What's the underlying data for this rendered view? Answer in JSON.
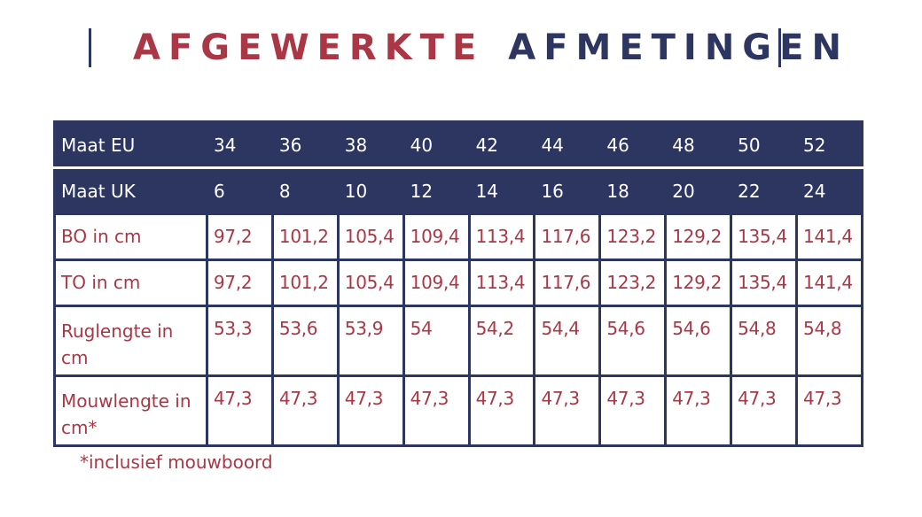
{
  "title": {
    "word1": "AFGEWERKTE",
    "word2": "AFMETINGEN"
  },
  "colors": {
    "navy": "#2d3561",
    "red": "#a93745"
  },
  "table": {
    "rows": [
      {
        "label": "Maat EU",
        "values": [
          "34",
          "36",
          "38",
          "40",
          "42",
          "44",
          "46",
          "48",
          "50",
          "52"
        ]
      },
      {
        "label": "Maat UK",
        "values": [
          "6",
          "8",
          "10",
          "12",
          "14",
          "16",
          "18",
          "20",
          "22",
          "24"
        ]
      },
      {
        "label": "BO in cm",
        "values": [
          "97,2",
          "101,2",
          "105,4",
          "109,4",
          "113,4",
          "117,6",
          "123,2",
          "129,2",
          "135,4",
          "141,4"
        ]
      },
      {
        "label": "TO in cm",
        "values": [
          "97,2",
          "101,2",
          "105,4",
          "109,4",
          "113,4",
          "117,6",
          "123,2",
          "129,2",
          "135,4",
          "141,4"
        ]
      },
      {
        "label": "Ruglengte in cm",
        "values": [
          "53,3",
          "53,6",
          "53,9",
          "54",
          "54,2",
          "54,4",
          "54,6",
          "54,6",
          "54,8",
          "54,8"
        ]
      },
      {
        "label": "Mouwlengte in cm*",
        "values": [
          "47,3",
          "47,3",
          "47,3",
          "47,3",
          "47,3",
          "47,3",
          "47,3",
          "47,3",
          "47,3",
          "47,3"
        ]
      }
    ]
  },
  "footnote": "*inclusief mouwboord"
}
